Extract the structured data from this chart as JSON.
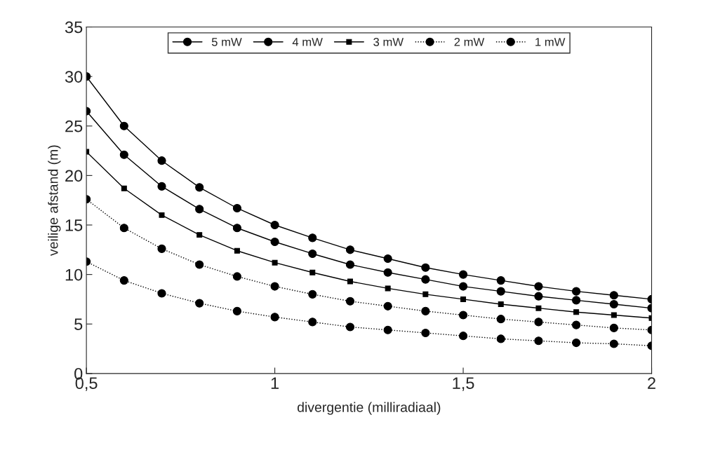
{
  "chart_data": {
    "type": "line",
    "xlabel": "divergentie (milliradiaal)",
    "ylabel": "veilige afstand (m)",
    "x": [
      0.5,
      0.6,
      0.7,
      0.8,
      0.9,
      1.0,
      1.1,
      1.2,
      1.3,
      1.4,
      1.5,
      1.6,
      1.7,
      1.8,
      1.9,
      2.0
    ],
    "series": [
      {
        "name": "5 mW",
        "color": "#000000",
        "marker": "circle",
        "line_style": "solid",
        "values": [
          30,
          25,
          21.5,
          18.8,
          16.7,
          15,
          13.7,
          12.5,
          11.6,
          10.7,
          10,
          9.4,
          8.8,
          8.3,
          7.9,
          7.5
        ]
      },
      {
        "name": "4 mW",
        "color": "#000000",
        "marker": "circle",
        "line_style": "solid",
        "values": [
          26.5,
          22.1,
          18.9,
          16.6,
          14.7,
          13.3,
          12.1,
          11.0,
          10.2,
          9.5,
          8.8,
          8.3,
          7.8,
          7.4,
          7.0,
          6.6
        ]
      },
      {
        "name": "3 mW",
        "color": "#000000",
        "marker": "square",
        "line_style": "solid",
        "values": [
          22.4,
          18.7,
          16.0,
          14.0,
          12.4,
          11.2,
          10.2,
          9.3,
          8.6,
          8.0,
          7.5,
          7.0,
          6.6,
          6.2,
          5.9,
          5.6
        ]
      },
      {
        "name": "2 mW",
        "color": "#000000",
        "marker": "circle",
        "line_style": "dotted",
        "values": [
          17.6,
          14.7,
          12.6,
          11.0,
          9.8,
          8.8,
          8.0,
          7.3,
          6.8,
          6.3,
          5.9,
          5.5,
          5.2,
          4.9,
          4.6,
          4.4
        ]
      },
      {
        "name": "1 mW",
        "color": "#000000",
        "marker": "circle",
        "line_style": "dotted",
        "values": [
          11.3,
          9.4,
          8.1,
          7.1,
          6.3,
          5.7,
          5.2,
          4.7,
          4.4,
          4.1,
          3.8,
          3.5,
          3.3,
          3.1,
          3.0,
          2.8
        ]
      }
    ],
    "xlim": [
      0.5,
      2
    ],
    "xticks": [
      {
        "value": 0.5,
        "label": "0,5"
      },
      1,
      {
        "value": 1.5,
        "label": "1,5"
      },
      2
    ],
    "ylim": [
      0,
      35
    ],
    "yticks": [
      0,
      5,
      10,
      15,
      20,
      25,
      30,
      35
    ],
    "legend": "top",
    "grid": false
  }
}
